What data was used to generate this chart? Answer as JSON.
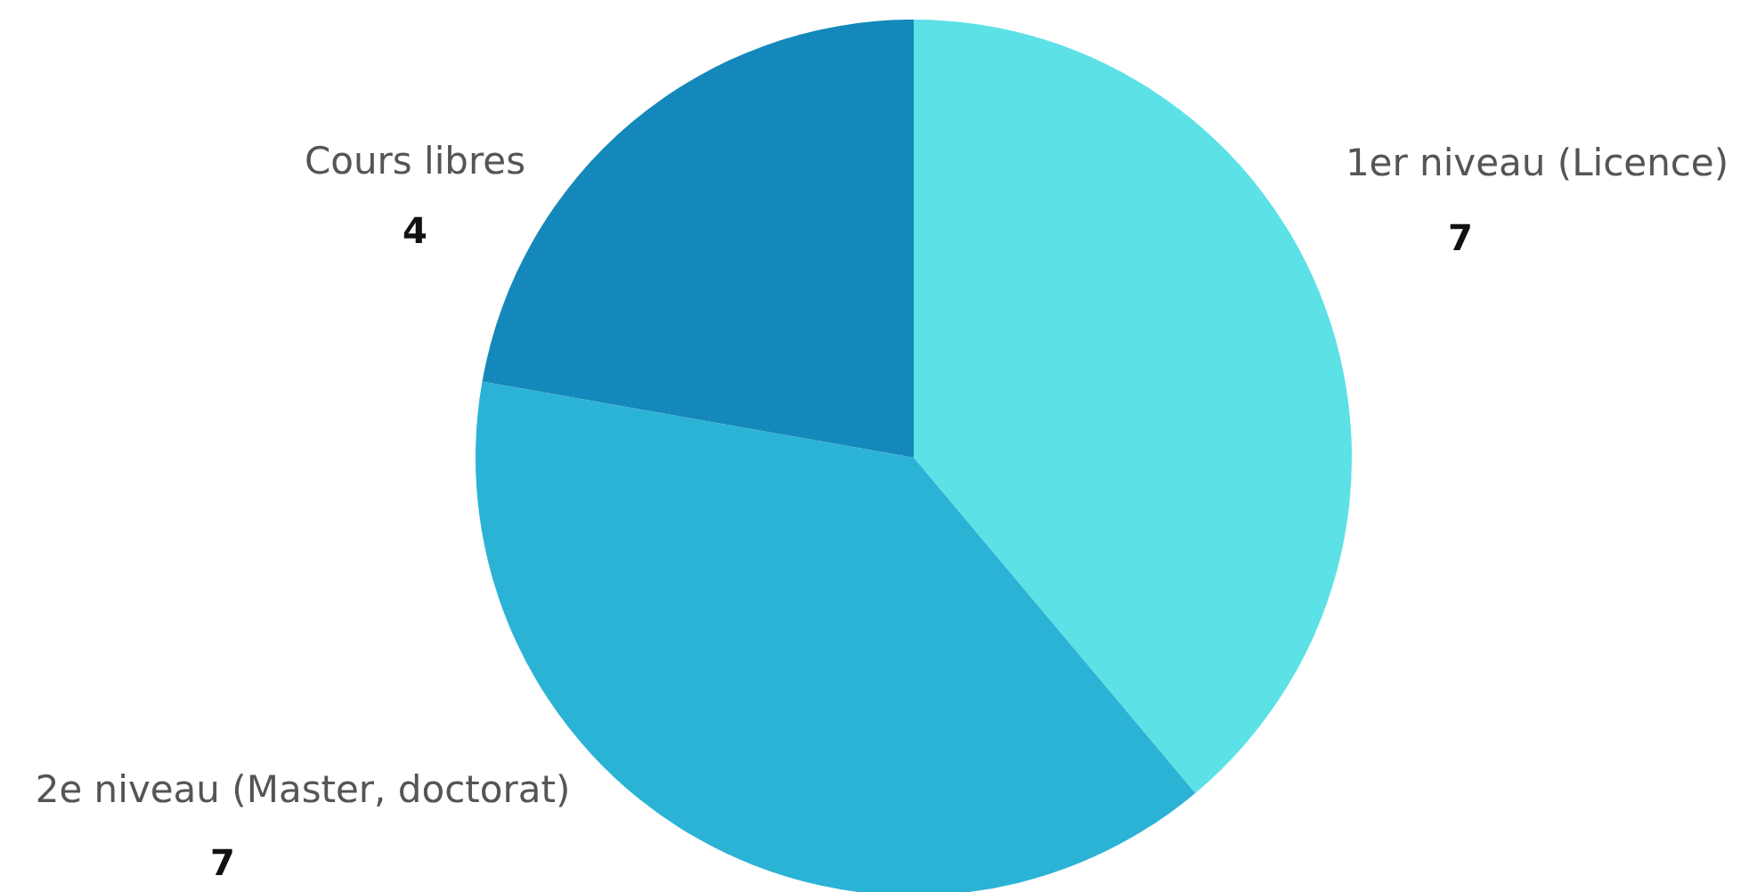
{
  "chart_data": {
    "type": "pie",
    "categories": [
      "1er niveau (Licence)",
      "2e niveau (Master, doctorat)",
      "Cours libres"
    ],
    "values": [
      7,
      7,
      4
    ],
    "colors": [
      "#5ce1e6",
      "#2bb3d5",
      "#1488ba"
    ],
    "data_labels": true
  }
}
